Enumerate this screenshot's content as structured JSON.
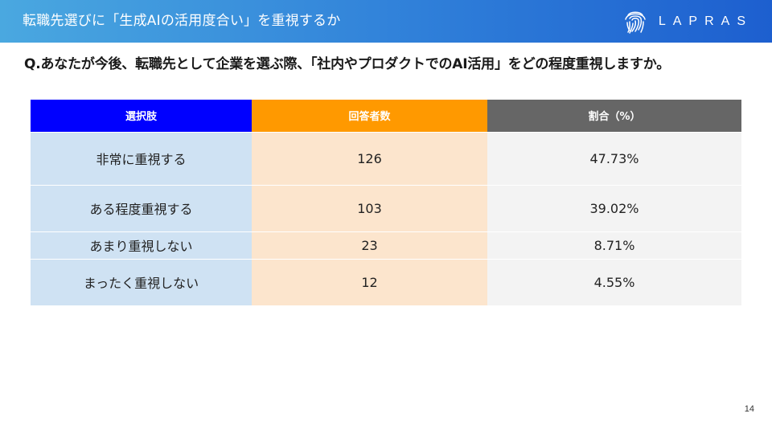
{
  "header": {
    "title": "転職先選びに「生成AIの活用度合い」を重視するか",
    "logo_text": "LAPRAS"
  },
  "question": "Q.あなたが今後、転職先として企業を選ぶ際、「社内やプロダクトでのAI活用」をどの程度重視しますか。",
  "table": {
    "headers": [
      "選択肢",
      "回答者数",
      "割合（%）"
    ],
    "rows": [
      {
        "choice": "非常に重視する",
        "count": "126",
        "ratio": "47.73%"
      },
      {
        "choice": "ある程度重視する",
        "count": "103",
        "ratio": "39.02%"
      },
      {
        "choice": "あまり重視しない",
        "count": "23",
        "ratio": "8.71%"
      },
      {
        "choice": "まったく重視しない",
        "count": "12",
        "ratio": "4.55%"
      }
    ]
  },
  "colors": {
    "header_choice": "#0000ff",
    "header_count": "#ff9900",
    "header_ratio": "#666666",
    "cell_choice": "#cfe2f3",
    "cell_count": "#fce5cd",
    "cell_ratio": "#f3f3f3"
  },
  "icons": {
    "logo": "fingerprint-icon"
  },
  "page_number": "14"
}
